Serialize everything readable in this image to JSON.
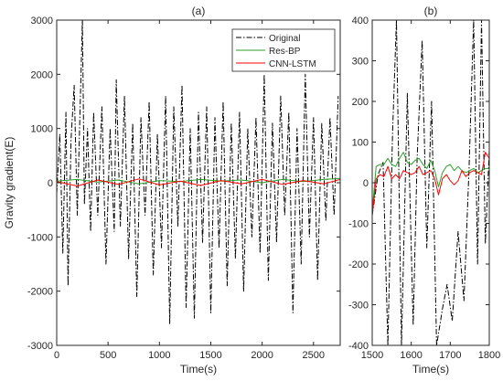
{
  "chart_data": [
    {
      "type": "line",
      "title": "(a)",
      "xlabel": "Time(s)",
      "ylabel": "Gravity gradient(E)",
      "xlim": [
        0,
        2760
      ],
      "ylim": [
        -3000,
        3000
      ],
      "xticks": [
        0,
        500,
        1000,
        1500,
        2000,
        2500
      ],
      "yticks": [
        -3000,
        -2000,
        -1000,
        0,
        1000,
        2000,
        3000
      ],
      "legend_position": "top-right",
      "grid": false,
      "series": [
        {
          "name": "Original",
          "color": "#000000",
          "style": "dashdot",
          "x": [
            0,
            30,
            60,
            90,
            110,
            140,
            170,
            200,
            230,
            250,
            270,
            300,
            330,
            360,
            400,
            440,
            480,
            520,
            560,
            580,
            620,
            660,
            700,
            740,
            780,
            820,
            860,
            900,
            940,
            980,
            1020,
            1060,
            1100,
            1140,
            1180,
            1220,
            1260,
            1300,
            1340,
            1380,
            1420,
            1460,
            1500,
            1540,
            1580,
            1620,
            1660,
            1700,
            1740,
            1780,
            1820,
            1860,
            1900,
            1940,
            1980,
            2020,
            2060,
            2100,
            2140,
            2180,
            2220,
            2260,
            2300,
            2340,
            2380,
            2420,
            2460,
            2500,
            2540,
            2580,
            2620,
            2660,
            2700,
            2740
          ],
          "y": [
            -200,
            900,
            -1300,
            1300,
            -1900,
            800,
            1800,
            -600,
            1500,
            3000,
            -400,
            1000,
            -900,
            1300,
            -600,
            1400,
            -1500,
            1000,
            -900,
            1900,
            -800,
            1600,
            -1400,
            1100,
            -2100,
            1200,
            -600,
            1500,
            -1700,
            900,
            -1200,
            1600,
            -2600,
            1400,
            -800,
            1800,
            -2300,
            1000,
            -2500,
            1300,
            -1100,
            1400,
            -2400,
            1200,
            -1200,
            1500,
            -1900,
            1100,
            -1400,
            1300,
            -2000,
            1000,
            -1000,
            1200,
            -1300,
            2000,
            -1800,
            1100,
            -1100,
            1600,
            -600,
            1300,
            -2400,
            1000,
            -1500,
            2000,
            -1000,
            1200,
            -1800,
            1100,
            -700,
            1200,
            -600,
            1600
          ]
        },
        {
          "name": "Res-BP",
          "color": "#2ca02c",
          "style": "solid",
          "x": [
            0,
            200,
            400,
            600,
            800,
            1000,
            1200,
            1400,
            1600,
            1800,
            2000,
            2200,
            2400,
            2600,
            2760
          ],
          "y": [
            30,
            60,
            10,
            50,
            -20,
            40,
            20,
            60,
            30,
            50,
            0,
            60,
            20,
            60,
            80
          ]
        },
        {
          "name": "CNN-LSTM",
          "color": "#ff0000",
          "style": "solid",
          "x": [
            0,
            200,
            400,
            600,
            800,
            1000,
            1200,
            1400,
            1600,
            1800,
            2000,
            2200,
            2400,
            2600,
            2760
          ],
          "y": [
            20,
            -60,
            50,
            -30,
            70,
            -40,
            30,
            -50,
            40,
            -20,
            60,
            -30,
            40,
            -20,
            60
          ]
        }
      ]
    },
    {
      "type": "line",
      "title": "(b)",
      "xlabel": "Time(s)",
      "xlim": [
        1500,
        1800
      ],
      "ylim": [
        -400,
        400
      ],
      "xticks": [
        1500,
        1600,
        1700,
        1800
      ],
      "yticks": [
        -400,
        -300,
        -200,
        -100,
        0,
        100,
        200,
        300,
        400
      ],
      "grid": false,
      "series": [
        {
          "name": "Original",
          "color": "#000000",
          "style": "dashdot",
          "x": [
            1500,
            1515,
            1528,
            1540,
            1552,
            1562,
            1575,
            1590,
            1605,
            1615,
            1628,
            1640,
            1652,
            1665,
            1680,
            1692,
            1705,
            1720,
            1735,
            1748,
            1760,
            1770,
            1780,
            1790,
            1800
          ],
          "y": [
            -80,
            20,
            50,
            -400,
            120,
            400,
            -400,
            220,
            -350,
            60,
            350,
            -160,
            200,
            -400,
            -310,
            -250,
            -340,
            -120,
            -290,
            30,
            400,
            -200,
            400,
            -150,
            80
          ]
        },
        {
          "name": "Res-BP",
          "color": "#2ca02c",
          "style": "solid",
          "x": [
            1500,
            1510,
            1520,
            1530,
            1540,
            1550,
            1560,
            1570,
            1580,
            1590,
            1600,
            1610,
            1620,
            1630,
            1640,
            1650,
            1660,
            1670,
            1680,
            1690,
            1700,
            1710,
            1720,
            1730,
            1740,
            1750,
            1760,
            1770,
            1780,
            1790,
            1800
          ],
          "y": [
            -70,
            40,
            45,
            45,
            60,
            45,
            40,
            60,
            75,
            50,
            45,
            55,
            60,
            45,
            35,
            55,
            30,
            -10,
            25,
            40,
            45,
            30,
            40,
            30,
            25,
            30,
            35,
            25,
            30,
            35,
            35
          ]
        },
        {
          "name": "CNN-LSTM",
          "color": "#ff0000",
          "style": "solid",
          "x": [
            1500,
            1510,
            1520,
            1530,
            1540,
            1550,
            1560,
            1570,
            1580,
            1590,
            1600,
            1610,
            1620,
            1630,
            1640,
            1650,
            1660,
            1670,
            1680,
            1690,
            1700,
            1710,
            1720,
            1730,
            1740,
            1750,
            1760,
            1770,
            1780,
            1790,
            1800
          ],
          "y": [
            -80,
            10,
            20,
            15,
            40,
            10,
            20,
            10,
            30,
            25,
            20,
            25,
            40,
            20,
            25,
            30,
            10,
            -30,
            10,
            20,
            5,
            -5,
            5,
            30,
            15,
            25,
            30,
            25,
            20,
            75,
            60
          ]
        }
      ]
    }
  ]
}
